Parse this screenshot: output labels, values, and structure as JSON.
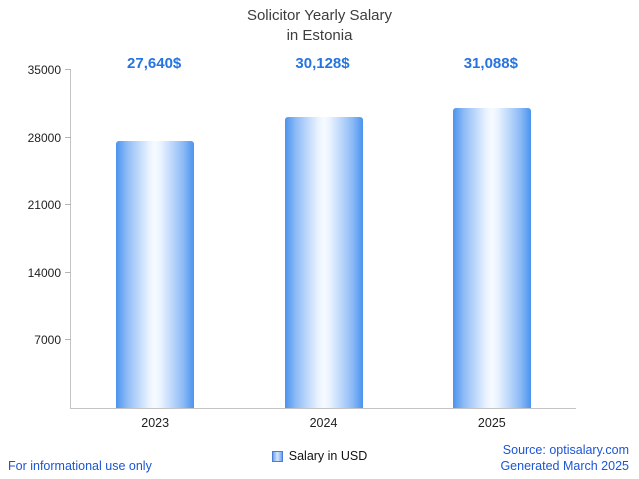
{
  "chart_data": {
    "type": "bar",
    "title_lines": [
      "Solicitor Yearly Salary",
      "in Estonia"
    ],
    "categories": [
      "2023",
      "2024",
      "2025"
    ],
    "series": [
      {
        "name": "Salary in USD",
        "values": [
          27640,
          30128,
          31088
        ]
      }
    ],
    "value_labels": [
      "27,640$",
      "30,128$",
      "31,088$"
    ],
    "ylim": [
      0,
      35000
    ],
    "yticks": [
      7000,
      14000,
      21000,
      28000,
      35000
    ],
    "grid": false,
    "legend_position": "bottom-center",
    "bar_color": "#4b93ee",
    "value_label_color": "#2673e2"
  },
  "legend": {
    "label": "Salary in USD"
  },
  "footer": {
    "disclaimer": "For informational use only",
    "source": "Source: optisalary.com",
    "generated": "Generated March 2025"
  }
}
